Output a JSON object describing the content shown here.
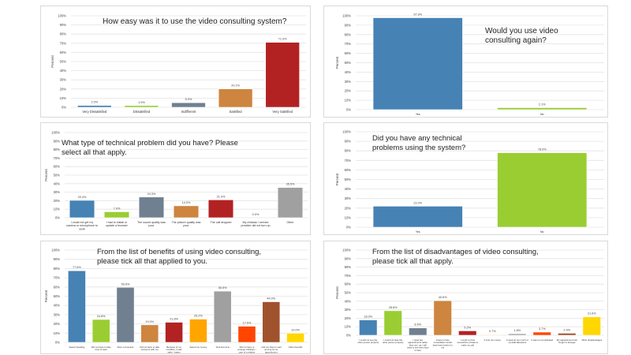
{
  "chart_data": [
    {
      "type": "bar",
      "title": "How easy was it to use the video consulting system?",
      "ylabel": "Percent",
      "xlabel": "",
      "ylim": [
        0,
        100
      ],
      "yticks": [
        "0%",
        "10%",
        "20%",
        "30%",
        "40%",
        "50%",
        "60%",
        "70%",
        "80%",
        "90%",
        "100%"
      ],
      "grid": true,
      "categories": [
        "Very Dissatisfied",
        "Dissatisfied",
        "Indifferent",
        "Satisfied",
        "Very Satisfied"
      ],
      "values": [
        2.0,
        1.9,
        5.0,
        20.1,
        71.0
      ],
      "labels": [
        "2.0%",
        "1.9%",
        "5.0%",
        "20.1%",
        "71.0%"
      ],
      "colors": [
        "#4682b4",
        "#9acd32",
        "#708090",
        "#cd853f",
        "#b22222"
      ]
    },
    {
      "type": "bar",
      "title": "Would you use video consulting again?",
      "ylabel": "Percent",
      "xlabel": "",
      "ylim": [
        0,
        100
      ],
      "yticks": [
        "0%",
        "10%",
        "20%",
        "30%",
        "40%",
        "50%",
        "60%",
        "70%",
        "80%",
        "90%",
        "100%"
      ],
      "grid": true,
      "categories": [
        "Yes",
        "No"
      ],
      "values": [
        97.9,
        2.1
      ],
      "labels": [
        "97.9%",
        "2.1%"
      ],
      "colors": [
        "#4682b4",
        "#9acd32"
      ]
    },
    {
      "type": "bar",
      "title": "What type of technical problem did you have?  Please select all that apply.",
      "ylabel": "Percent",
      "xlabel": "",
      "ylim": [
        0,
        100
      ],
      "yticks": [
        "0%",
        "10%",
        "20%",
        "30%",
        "40%",
        "50%",
        "60%",
        "70%",
        "80%",
        "90%",
        "100%"
      ],
      "grid": true,
      "categories": [
        "I could not get my camera or microphone to work",
        "I had to install or update a browser",
        "The sound quality was poor",
        "The picture quality was poor",
        "The call dropped",
        "My clinician / service provider did not turn up",
        "Other"
      ],
      "values": [
        20.4,
        7.0,
        24.3,
        14.0,
        21.0,
        0.0,
        35.5
      ],
      "labels": [
        "20.4%",
        "7.0%",
        "24.3%",
        "14.0%",
        "21.0%",
        "0.0%",
        "35.5%"
      ],
      "colors": [
        "#4682b4",
        "#9acd32",
        "#708090",
        "#cd853f",
        "#b22222",
        "#b22222",
        "#a0a0a0"
      ]
    },
    {
      "type": "bar",
      "title": "Did you have any technical problems using the system?",
      "ylabel": "Percent",
      "xlabel": "",
      "ylim": [
        0,
        100
      ],
      "yticks": [
        "0%",
        "10%",
        "20%",
        "30%",
        "40%",
        "50%",
        "60%",
        "70%",
        "80%",
        "90%",
        "100%"
      ],
      "grid": true,
      "categories": [
        "Yes",
        "No"
      ],
      "values": [
        22.0,
        78.0
      ],
      "labels": [
        "22.0%",
        "78.0%"
      ],
      "colors": [
        "#4682b4",
        "#9acd32"
      ]
    },
    {
      "type": "bar",
      "title": "From the list of benefits of using video consulting, please tick all that applied to you.",
      "ylabel": "Percent",
      "xlabel": "",
      "ylim": [
        0,
        100
      ],
      "yticks": [
        "0%",
        "10%",
        "20%",
        "30%",
        "40%",
        "50%",
        "60%",
        "70%",
        "80%",
        "90%",
        "100%"
      ],
      "grid": true,
      "categories": [
        "Saved travelling",
        "Did not have to take time of work",
        "More convenient",
        "Did not have to take someone with me",
        "Because of my condition, it was safer / easier",
        "Saved me money",
        "Took less time",
        "Did not have to arrange childcare / care of a relative",
        "I did not have to wait as long for an appointment",
        "Other benefits"
      ],
      "values": [
        77.6,
        24.8,
        59.6,
        19.0,
        21.8,
        25.2,
        55.5,
        17.5,
        44.0,
        10.0
      ],
      "labels": [
        "77.6%",
        "24.8%",
        "59.6%",
        "19.0%",
        "21.8%",
        "25.2%",
        "55.5%",
        "17.5%",
        "44.0%",
        "10.0%"
      ],
      "colors": [
        "#4682b4",
        "#9acd32",
        "#708090",
        "#cd853f",
        "#b22222",
        "#ffa500",
        "#a0a0a0",
        "#ff4500",
        "#a0522d",
        "#ffd700"
      ]
    },
    {
      "type": "bar",
      "title": "From the list of disadvantages of video consulting, please tick all that apply.",
      "ylabel": "Percent",
      "xlabel": "",
      "ylim": [
        0,
        100
      ],
      "yticks": [
        "0%",
        "10%",
        "20%",
        "30%",
        "40%",
        "50%",
        "60%",
        "70%",
        "80%",
        "90%",
        "100%"
      ],
      "grid": true,
      "categories": [
        "I could not see the other person properly",
        "I could not hear the other person properly",
        "I need two appointments rather than one, as I still need to see them face to face",
        "A face to face consultation would have been better for me",
        "I could not find somewhere private to make my call",
        "It cost me money",
        "It used up too much of my data allowance",
        "It was too complicated",
        "My appointment took longer to arrange",
        "Other disadvantages"
      ],
      "values": [
        18.0,
        28.8,
        8.6,
        40.6,
        5.2,
        0.7,
        1.8,
        3.7,
        2.4,
        21.6
      ],
      "labels": [
        "18.0%",
        "28.8%",
        "8.6%",
        "40.6%",
        "5.2%",
        "0.7%",
        "1.8%",
        "3.7%",
        "2.4%",
        "21.6%"
      ],
      "colors": [
        "#4682b4",
        "#9acd32",
        "#708090",
        "#cd853f",
        "#b22222",
        "#ffa500",
        "#a0a0a0",
        "#ff4500",
        "#a0522d",
        "#ffd700"
      ]
    }
  ]
}
